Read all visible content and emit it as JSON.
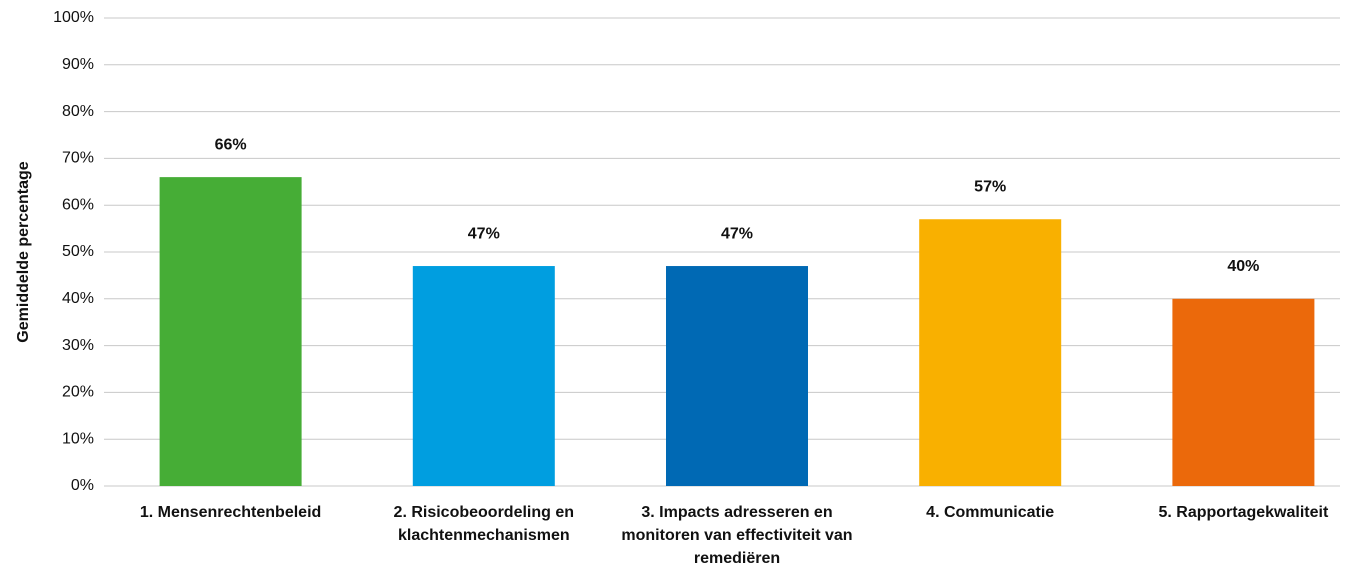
{
  "chart_data": {
    "type": "bar",
    "ylabel": "Gemiddelde percentage",
    "categories": [
      "1. Mensenrechtenbeleid",
      "2. Risicobeoordeling en klachtenmechanismen",
      "3. Impacts adresseren en monitoren van effectiviteit van remediëren",
      "4. Communicatie",
      "5. Rapportagekwaliteit"
    ],
    "values": [
      66,
      47,
      47,
      57,
      40
    ],
    "value_labels": [
      "66%",
      "47%",
      "47%",
      "57%",
      "40%"
    ],
    "colors": [
      "#46ad36",
      "#009ee0",
      "#0069b4",
      "#f9b000",
      "#eb690b"
    ],
    "ylim": [
      0,
      100
    ],
    "yticks": [
      {
        "value": 0,
        "label": "0%"
      },
      {
        "value": 10,
        "label": "10%"
      },
      {
        "value": 20,
        "label": "20%"
      },
      {
        "value": 30,
        "label": "30%"
      },
      {
        "value": 40,
        "label": "40%"
      },
      {
        "value": 50,
        "label": "50%"
      },
      {
        "value": 60,
        "label": "60%"
      },
      {
        "value": 70,
        "label": "70%"
      },
      {
        "value": 80,
        "label": "80%"
      },
      {
        "value": 90,
        "label": "90%"
      },
      {
        "value": 100,
        "label": "100%"
      }
    ],
    "grid": true
  }
}
